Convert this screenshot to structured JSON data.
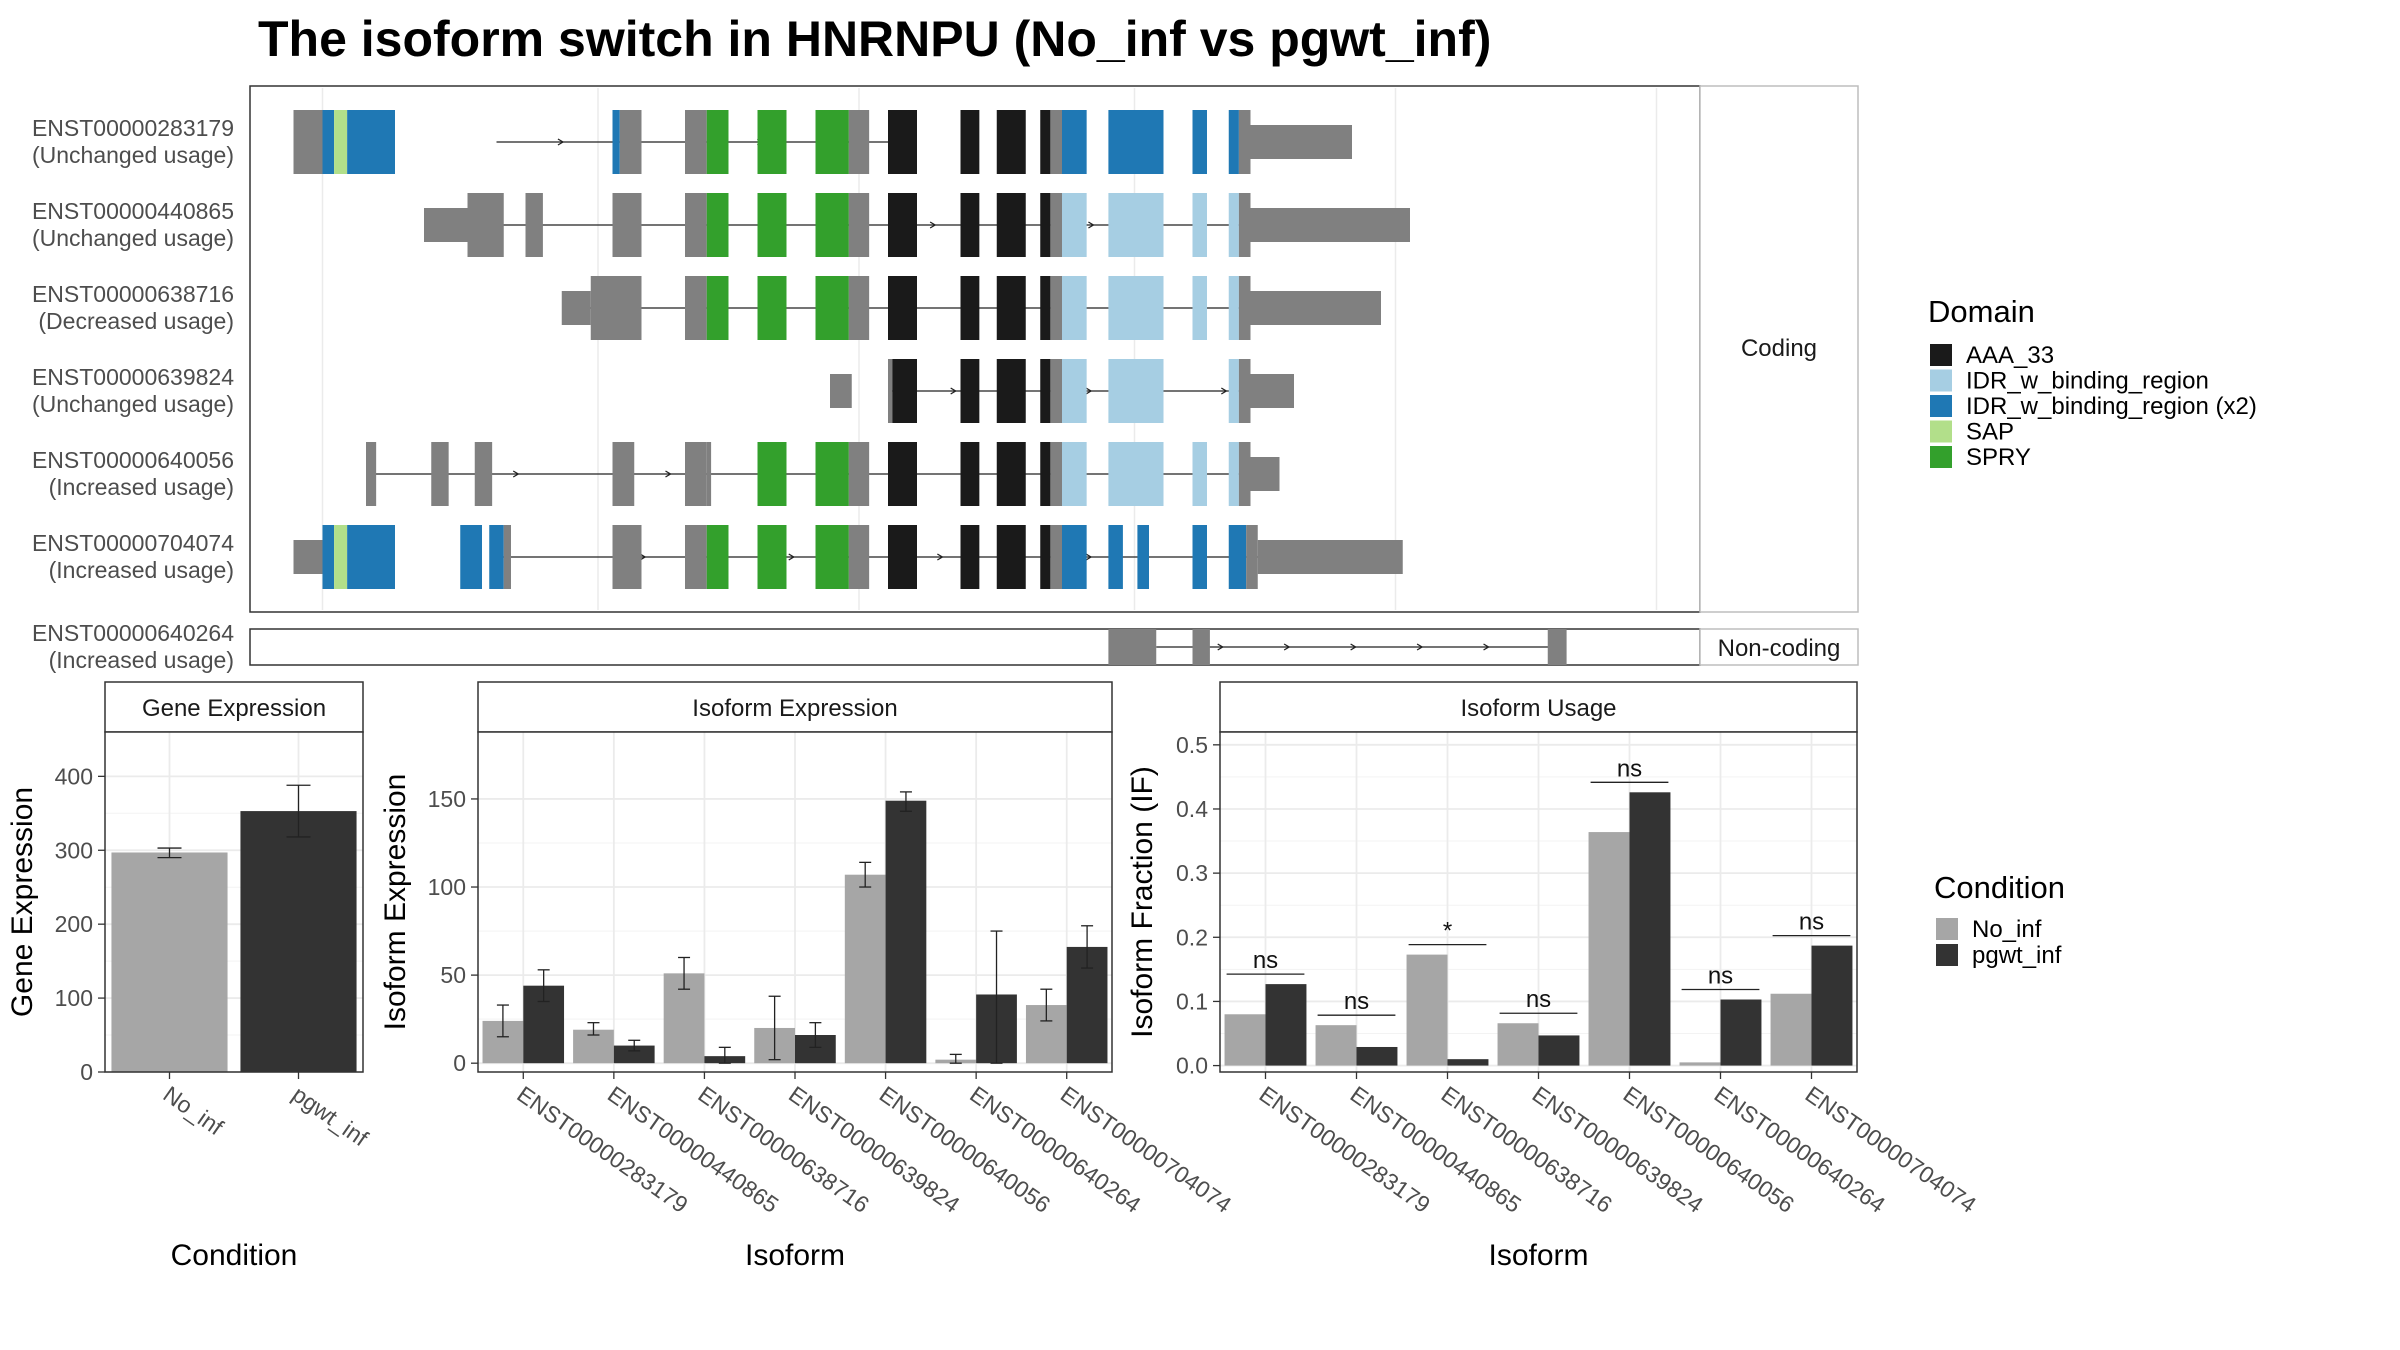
{
  "title": "The isoform switch in HNRNPU (No_inf vs pgwt_inf)",
  "colors": {
    "domains": {
      "AAA_33": "#1a1a1a",
      "IDR_w_binding_region": "#a6cee3",
      "IDR_w_binding_region (x2)": "#1f78b4",
      "SAP": "#b2df8a",
      "SPRY": "#33a02c"
    },
    "utr": "#808080",
    "conditions": {
      "No_inf": "#a6a6a6",
      "pgwt_inf": "#333333"
    }
  },
  "legends": {
    "domain": {
      "title": "Domain",
      "items": [
        "AAA_33",
        "IDR_w_binding_region",
        "IDR_w_binding_region (x2)",
        "SAP",
        "SPRY"
      ]
    },
    "condition": {
      "title": "Condition",
      "items": [
        "No_inf",
        "pgwt_inf"
      ]
    }
  },
  "structure": {
    "strip_coding": "Coding",
    "strip_noncoding": "Non-coding",
    "coding": [
      {
        "id": "ENST00000283179",
        "usage": "(Unchanged usage)",
        "line": [
          0.17,
          0.445
        ],
        "intron_arrows": true,
        "blocks": [
          [
            0.03,
            0.05,
            "utr"
          ],
          [
            0.05,
            0.058,
            "IDR_w_binding_region (x2)"
          ],
          [
            0.058,
            0.067,
            "SAP"
          ],
          [
            0.067,
            0.1,
            "IDR_w_binding_region (x2)"
          ],
          [
            0.25,
            0.255,
            "IDR_w_binding_region (x2)"
          ],
          [
            0.255,
            0.27,
            "utr"
          ],
          [
            0.3,
            0.315,
            "utr"
          ],
          [
            0.315,
            0.33,
            "SPRY"
          ],
          [
            0.35,
            0.37,
            "SPRY"
          ],
          [
            0.39,
            0.413,
            "SPRY"
          ],
          [
            0.413,
            0.427,
            "utr"
          ],
          [
            0.44,
            0.46,
            "AAA_33"
          ],
          [
            0.49,
            0.503,
            "AAA_33"
          ],
          [
            0.515,
            0.535,
            "AAA_33"
          ],
          [
            0.545,
            0.552,
            "AAA_33"
          ],
          [
            0.552,
            0.56,
            "utr"
          ],
          [
            0.56,
            0.577,
            "IDR_w_binding_region (x2)"
          ],
          [
            0.592,
            0.63,
            "IDR_w_binding_region (x2)"
          ],
          [
            0.65,
            0.66,
            "IDR_w_binding_region (x2)"
          ],
          [
            0.675,
            0.682,
            "IDR_w_binding_region (x2)"
          ],
          [
            0.682,
            0.69,
            "utr"
          ],
          [
            0.69,
            0.76,
            "utr",
            true
          ]
        ]
      },
      {
        "id": "ENST00000440865",
        "usage": "(Unchanged usage)",
        "line": [
          0.145,
          0.8
        ],
        "intron_arrows": true,
        "blocks": [
          [
            0.12,
            0.15,
            "utr",
            true
          ],
          [
            0.15,
            0.175,
            "utr"
          ],
          [
            0.19,
            0.202,
            "utr"
          ],
          [
            0.25,
            0.27,
            "utr"
          ],
          [
            0.3,
            0.315,
            "utr"
          ],
          [
            0.315,
            0.33,
            "SPRY"
          ],
          [
            0.35,
            0.37,
            "SPRY"
          ],
          [
            0.39,
            0.413,
            "SPRY"
          ],
          [
            0.413,
            0.427,
            "utr"
          ],
          [
            0.44,
            0.46,
            "AAA_33"
          ],
          [
            0.49,
            0.503,
            "AAA_33"
          ],
          [
            0.515,
            0.535,
            "AAA_33"
          ],
          [
            0.545,
            0.552,
            "AAA_33"
          ],
          [
            0.552,
            0.56,
            "utr"
          ],
          [
            0.56,
            0.577,
            "IDR_w_binding_region"
          ],
          [
            0.592,
            0.63,
            "IDR_w_binding_region"
          ],
          [
            0.65,
            0.66,
            "IDR_w_binding_region"
          ],
          [
            0.675,
            0.682,
            "IDR_w_binding_region"
          ],
          [
            0.682,
            0.69,
            "utr"
          ],
          [
            0.69,
            0.8,
            "utr",
            true
          ]
        ]
      },
      {
        "id": "ENST00000638716",
        "usage": "(Decreased usage)",
        "line": [
          0.22,
          0.78
        ],
        "intron_arrows": false,
        "blocks": [
          [
            0.215,
            0.235,
            "utr",
            true
          ],
          [
            0.235,
            0.27,
            "utr"
          ],
          [
            0.3,
            0.315,
            "utr"
          ],
          [
            0.315,
            0.33,
            "SPRY"
          ],
          [
            0.35,
            0.37,
            "SPRY"
          ],
          [
            0.39,
            0.413,
            "SPRY"
          ],
          [
            0.413,
            0.427,
            "utr"
          ],
          [
            0.44,
            0.46,
            "AAA_33"
          ],
          [
            0.49,
            0.503,
            "AAA_33"
          ],
          [
            0.515,
            0.535,
            "AAA_33"
          ],
          [
            0.545,
            0.552,
            "AAA_33"
          ],
          [
            0.552,
            0.56,
            "utr"
          ],
          [
            0.56,
            0.577,
            "IDR_w_binding_region"
          ],
          [
            0.592,
            0.63,
            "IDR_w_binding_region"
          ],
          [
            0.65,
            0.66,
            "IDR_w_binding_region"
          ],
          [
            0.675,
            0.682,
            "IDR_w_binding_region"
          ],
          [
            0.682,
            0.69,
            "utr"
          ],
          [
            0.69,
            0.78,
            "utr",
            true
          ]
        ]
      },
      {
        "id": "ENST00000639824",
        "usage": "(Unchanged usage)",
        "line": [
          0.44,
          0.72
        ],
        "intron_arrows": true,
        "blocks": [
          [
            0.4,
            0.415,
            "utr",
            true
          ],
          [
            0.44,
            0.443,
            "utr"
          ],
          [
            0.443,
            0.46,
            "AAA_33"
          ],
          [
            0.49,
            0.503,
            "AAA_33"
          ],
          [
            0.515,
            0.535,
            "AAA_33"
          ],
          [
            0.545,
            0.552,
            "AAA_33"
          ],
          [
            0.552,
            0.56,
            "utr"
          ],
          [
            0.56,
            0.577,
            "IDR_w_binding_region"
          ],
          [
            0.592,
            0.63,
            "IDR_w_binding_region"
          ],
          [
            0.675,
            0.682,
            "IDR_w_binding_region"
          ],
          [
            0.682,
            0.69,
            "utr"
          ],
          [
            0.69,
            0.72,
            "utr",
            true
          ]
        ]
      },
      {
        "id": "ENST00000640056",
        "usage": "(Increased usage)",
        "line": [
          0.08,
          0.71
        ],
        "intron_arrows": true,
        "blocks": [
          [
            0.08,
            0.087,
            "utr"
          ],
          [
            0.125,
            0.137,
            "utr"
          ],
          [
            0.155,
            0.167,
            "utr"
          ],
          [
            0.25,
            0.265,
            "utr"
          ],
          [
            0.3,
            0.315,
            "utr"
          ],
          [
            0.315,
            0.318,
            "utr"
          ],
          [
            0.35,
            0.37,
            "SPRY"
          ],
          [
            0.39,
            0.413,
            "SPRY"
          ],
          [
            0.413,
            0.427,
            "utr"
          ],
          [
            0.44,
            0.46,
            "AAA_33"
          ],
          [
            0.49,
            0.503,
            "AAA_33"
          ],
          [
            0.515,
            0.535,
            "AAA_33"
          ],
          [
            0.545,
            0.552,
            "AAA_33"
          ],
          [
            0.552,
            0.56,
            "utr"
          ],
          [
            0.56,
            0.577,
            "IDR_w_binding_region"
          ],
          [
            0.592,
            0.63,
            "IDR_w_binding_region"
          ],
          [
            0.65,
            0.66,
            "IDR_w_binding_region"
          ],
          [
            0.675,
            0.682,
            "IDR_w_binding_region"
          ],
          [
            0.682,
            0.69,
            "utr"
          ],
          [
            0.69,
            0.71,
            "utr",
            true
          ]
        ]
      },
      {
        "id": "ENST00000704074",
        "usage": "(Increased usage)",
        "line": [
          0.17,
          0.785
        ],
        "intron_arrows": true,
        "blocks": [
          [
            0.03,
            0.05,
            "utr",
            true
          ],
          [
            0.05,
            0.058,
            "IDR_w_binding_region (x2)"
          ],
          [
            0.058,
            0.067,
            "SAP"
          ],
          [
            0.067,
            0.1,
            "IDR_w_binding_region (x2)"
          ],
          [
            0.145,
            0.16,
            "IDR_w_binding_region (x2)"
          ],
          [
            0.165,
            0.175,
            "IDR_w_binding_region (x2)"
          ],
          [
            0.175,
            0.18,
            "utr"
          ],
          [
            0.25,
            0.27,
            "utr"
          ],
          [
            0.3,
            0.315,
            "utr"
          ],
          [
            0.315,
            0.33,
            "SPRY"
          ],
          [
            0.35,
            0.37,
            "SPRY"
          ],
          [
            0.39,
            0.413,
            "SPRY"
          ],
          [
            0.413,
            0.427,
            "utr"
          ],
          [
            0.44,
            0.46,
            "AAA_33"
          ],
          [
            0.49,
            0.503,
            "AAA_33"
          ],
          [
            0.515,
            0.535,
            "AAA_33"
          ],
          [
            0.545,
            0.552,
            "AAA_33"
          ],
          [
            0.552,
            0.56,
            "utr"
          ],
          [
            0.56,
            0.577,
            "IDR_w_binding_region (x2)"
          ],
          [
            0.592,
            0.602,
            "IDR_w_binding_region (x2)"
          ],
          [
            0.612,
            0.62,
            "IDR_w_binding_region (x2)"
          ],
          [
            0.65,
            0.66,
            "IDR_w_binding_region (x2)"
          ],
          [
            0.675,
            0.687,
            "IDR_w_binding_region (x2)"
          ],
          [
            0.687,
            0.695,
            "utr"
          ],
          [
            0.695,
            0.795,
            "utr",
            true
          ]
        ]
      }
    ],
    "noncoding": [
      {
        "id": "ENST00000640264",
        "usage": "(Increased usage)",
        "line": [
          0.625,
          0.9
        ],
        "intron_arrows": true,
        "blocks": [
          [
            0.592,
            0.625,
            "utr"
          ],
          [
            0.65,
            0.662,
            "utr"
          ],
          [
            0.895,
            0.908,
            "utr"
          ]
        ]
      }
    ]
  },
  "chart_data": [
    {
      "type": "bar",
      "panel": "Gene Expression",
      "xlabel": "Condition",
      "ylabel": "Gene Expression",
      "categories": [
        "No_inf",
        "pgwt_inf"
      ],
      "values": [
        297,
        353
      ],
      "errors": [
        [
          290,
          303
        ],
        [
          318,
          388
        ]
      ],
      "ylim": [
        0,
        460
      ],
      "yticks": [
        0,
        100,
        200,
        300,
        400
      ]
    },
    {
      "type": "bar",
      "panel": "Isoform Expression",
      "xlabel": "Isoform",
      "ylabel": "Isoform Expression",
      "categories": [
        "ENST00000283179",
        "ENST00000440865",
        "ENST00000638716",
        "ENST00000639824",
        "ENST00000640056",
        "ENST00000640264",
        "ENST00000704074"
      ],
      "series": [
        {
          "name": "No_inf",
          "values": [
            24,
            19,
            51,
            20,
            107,
            2,
            33
          ],
          "errors": [
            [
              15,
              33
            ],
            [
              16,
              23
            ],
            [
              42,
              60
            ],
            [
              2,
              38
            ],
            [
              100,
              114
            ],
            [
              0,
              5
            ],
            [
              24,
              42
            ]
          ]
        },
        {
          "name": "pgwt_inf",
          "values": [
            44,
            10,
            4,
            16,
            149,
            39,
            66
          ],
          "errors": [
            [
              35,
              53
            ],
            [
              7,
              13
            ],
            [
              0,
              9
            ],
            [
              9,
              23
            ],
            [
              143,
              154
            ],
            [
              0,
              75
            ],
            [
              54,
              78
            ]
          ]
        }
      ],
      "ylim": [
        -5,
        188
      ],
      "yticks": [
        0,
        50,
        100,
        150
      ]
    },
    {
      "type": "bar",
      "panel": "Isoform Usage",
      "xlabel": "Isoform",
      "ylabel": "Isoform Fraction (IF)",
      "categories": [
        "ENST00000283179",
        "ENST00000440865",
        "ENST00000638716",
        "ENST00000639824",
        "ENST00000640056",
        "ENST00000640264",
        "ENST00000704074"
      ],
      "series": [
        {
          "name": "No_inf",
          "values": [
            0.08,
            0.063,
            0.173,
            0.066,
            0.364,
            0.005,
            0.112
          ]
        },
        {
          "name": "pgwt_inf",
          "values": [
            0.127,
            0.029,
            0.01,
            0.047,
            0.426,
            0.103,
            0.187
          ]
        }
      ],
      "significance": [
        "ns",
        "ns",
        "*",
        "ns",
        "ns",
        "ns",
        "ns"
      ],
      "ylim": [
        -0.01,
        0.52
      ],
      "yticks": [
        0.0,
        0.1,
        0.2,
        0.3,
        0.4,
        0.5
      ]
    }
  ]
}
